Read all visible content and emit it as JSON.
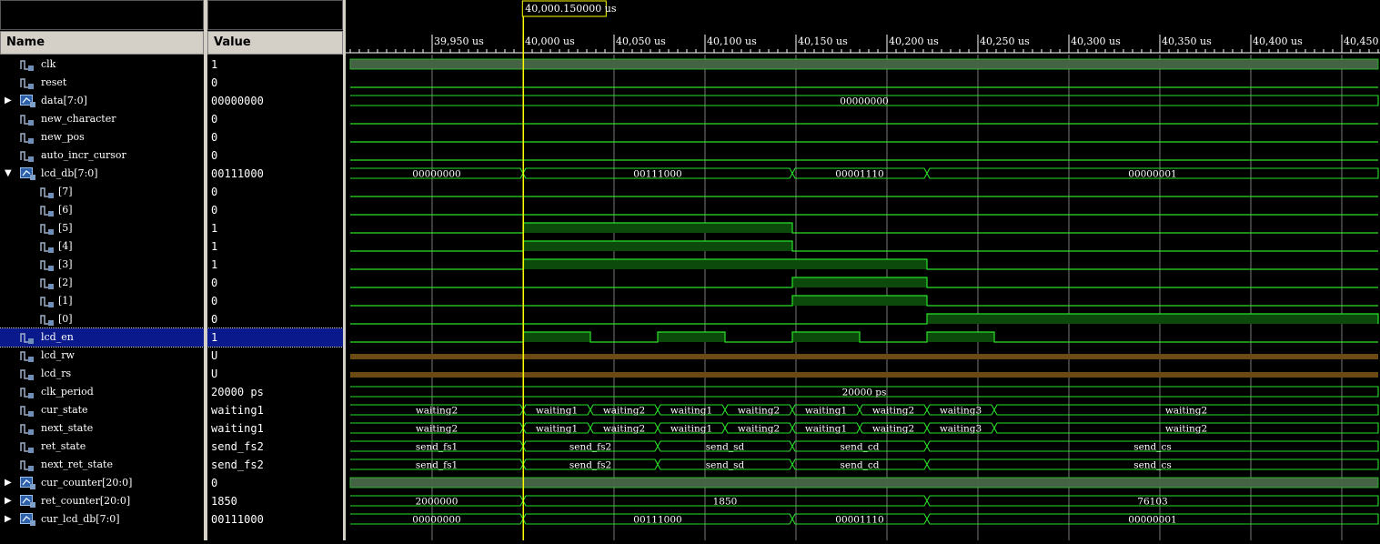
{
  "headers": {
    "name": "Name",
    "value": "Value"
  },
  "cursor_label": "40,000.150000 us",
  "timeline_ticks": [
    "39,950 us",
    "40,000 us",
    "40,050 us",
    "40,100 us",
    "40,150 us",
    "40,200 us",
    "40,250 us",
    "40,300 us",
    "40,350 us",
    "40,400 us",
    "40,450 us"
  ],
  "signals": [
    {
      "name": "clk",
      "value": "1",
      "kind": "bit",
      "expander": "",
      "indent": 0
    },
    {
      "name": "reset",
      "value": "0",
      "kind": "bit",
      "expander": "",
      "indent": 0
    },
    {
      "name": "data[7:0]",
      "value": "00000000",
      "kind": "bus",
      "expander": "▶",
      "indent": 0
    },
    {
      "name": "new_character",
      "value": "0",
      "kind": "bit",
      "expander": "",
      "indent": 0
    },
    {
      "name": "new_pos",
      "value": "0",
      "kind": "bit",
      "expander": "",
      "indent": 0
    },
    {
      "name": "auto_incr_cursor",
      "value": "0",
      "kind": "bit",
      "expander": "",
      "indent": 0
    },
    {
      "name": "lcd_db[7:0]",
      "value": "00111000",
      "kind": "bus",
      "expander": "▼",
      "indent": 0
    },
    {
      "name": "[7]",
      "value": "0",
      "kind": "bit",
      "expander": "",
      "indent": 1
    },
    {
      "name": "[6]",
      "value": "0",
      "kind": "bit",
      "expander": "",
      "indent": 1
    },
    {
      "name": "[5]",
      "value": "1",
      "kind": "bit",
      "expander": "",
      "indent": 1
    },
    {
      "name": "[4]",
      "value": "1",
      "kind": "bit",
      "expander": "",
      "indent": 1
    },
    {
      "name": "[3]",
      "value": "1",
      "kind": "bit",
      "expander": "",
      "indent": 1
    },
    {
      "name": "[2]",
      "value": "0",
      "kind": "bit",
      "expander": "",
      "indent": 1
    },
    {
      "name": "[1]",
      "value": "0",
      "kind": "bit",
      "expander": "",
      "indent": 1
    },
    {
      "name": "[0]",
      "value": "0",
      "kind": "bit",
      "expander": "",
      "indent": 1
    },
    {
      "name": "lcd_en",
      "value": "1",
      "kind": "bit",
      "expander": "",
      "indent": 0,
      "selected": true
    },
    {
      "name": "lcd_rw",
      "value": "U",
      "kind": "bit",
      "expander": "",
      "indent": 0
    },
    {
      "name": "lcd_rs",
      "value": "U",
      "kind": "bit",
      "expander": "",
      "indent": 0
    },
    {
      "name": "clk_period",
      "value": "20000 ps",
      "kind": "bit",
      "expander": "",
      "indent": 0
    },
    {
      "name": "cur_state",
      "value": "waiting1",
      "kind": "bit",
      "expander": "",
      "indent": 0
    },
    {
      "name": "next_state",
      "value": "waiting1",
      "kind": "bit",
      "expander": "",
      "indent": 0
    },
    {
      "name": "ret_state",
      "value": "send_fs2",
      "kind": "bit",
      "expander": "",
      "indent": 0
    },
    {
      "name": "next_ret_state",
      "value": "send_fs2",
      "kind": "bit",
      "expander": "",
      "indent": 0
    },
    {
      "name": "cur_counter[20:0]",
      "value": "0",
      "kind": "bus",
      "expander": "▶",
      "indent": 0
    },
    {
      "name": "ret_counter[20:0]",
      "value": "1850",
      "kind": "bus",
      "expander": "▶",
      "indent": 0
    },
    {
      "name": "cur_lcd_db[7:0]",
      "value": "00111000",
      "kind": "bus",
      "expander": "▶",
      "indent": 0
    }
  ],
  "waveforms": [
    {
      "type": "clock"
    },
    {
      "type": "low"
    },
    {
      "type": "bus",
      "segments": [
        [
          "00000000"
        ]
      ]
    },
    {
      "type": "low"
    },
    {
      "type": "low"
    },
    {
      "type": "low"
    },
    {
      "type": "bus",
      "segments": [
        [
          "00000000"
        ],
        [
          "00111000"
        ],
        [
          "00001110"
        ],
        [
          "00000001"
        ]
      ]
    },
    {
      "type": "low"
    },
    {
      "type": "low"
    },
    {
      "type": "pulses",
      "highs": [
        [
          40000,
          40148
        ]
      ]
    },
    {
      "type": "pulses",
      "highs": [
        [
          40000,
          40148
        ]
      ]
    },
    {
      "type": "pulses",
      "highs": [
        [
          40000,
          40222
        ]
      ]
    },
    {
      "type": "pulses",
      "highs": [
        [
          40148,
          40222
        ]
      ]
    },
    {
      "type": "pulses",
      "highs": [
        [
          40148,
          40222
        ]
      ]
    },
    {
      "type": "pulses",
      "highs": [
        [
          40222,
          40470
        ]
      ]
    },
    {
      "type": "pulses",
      "highs": [
        [
          40000,
          40037
        ],
        [
          40074,
          40111
        ],
        [
          40148,
          40185
        ],
        [
          40222,
          40259
        ]
      ]
    },
    {
      "type": "undefined"
    },
    {
      "type": "undefined"
    },
    {
      "type": "bus",
      "segments": [
        [
          "20000 ps"
        ]
      ]
    },
    {
      "type": "bus",
      "segments": [
        [
          "waiting2"
        ],
        [
          "waiting1"
        ],
        [
          "waiting2"
        ],
        [
          "waiting1"
        ],
        [
          "waiting2"
        ],
        [
          "waiting1"
        ],
        [
          "waiting2"
        ],
        [
          "waiting3"
        ],
        [
          "waiting2"
        ]
      ]
    },
    {
      "type": "bus",
      "segments": [
        [
          "waiting2"
        ],
        [
          "waiting1"
        ],
        [
          "waiting2"
        ],
        [
          "waiting1"
        ],
        [
          "waiting2"
        ],
        [
          "waiting1"
        ],
        [
          "waiting2"
        ],
        [
          "waiting3"
        ],
        [
          "waiting2"
        ]
      ]
    },
    {
      "type": "bus",
      "segments": [
        [
          "send_fs1"
        ],
        [
          "send_fs2"
        ],
        [
          "send_sd"
        ],
        [
          "send_cd"
        ],
        [
          "send_cs"
        ]
      ]
    },
    {
      "type": "bus",
      "segments": [
        [
          "send_fs1"
        ],
        [
          "send_fs2"
        ],
        [
          "send_sd"
        ],
        [
          "send_cd"
        ],
        [
          "send_cs"
        ]
      ]
    },
    {
      "type": "clock"
    },
    {
      "type": "bus",
      "segments": [
        [
          "2000000"
        ],
        [
          "1850"
        ],
        [
          "76103"
        ]
      ]
    },
    {
      "type": "bus",
      "segments": [
        [
          "00000000"
        ],
        [
          "00111000"
        ],
        [
          "00001110"
        ],
        [
          "00000001"
        ]
      ]
    }
  ],
  "segment_times": {
    "2": [
      [
        39905,
        40470
      ]
    ],
    "6": [
      [
        39905,
        40000
      ],
      [
        40000,
        40148
      ],
      [
        40148,
        40222
      ],
      [
        40222,
        40470
      ]
    ],
    "18": [
      [
        39905,
        40470
      ]
    ],
    "19": [
      [
        39905,
        40000
      ],
      [
        40000,
        40037
      ],
      [
        40037,
        40074
      ],
      [
        40074,
        40111
      ],
      [
        40111,
        40148
      ],
      [
        40148,
        40185
      ],
      [
        40185,
        40222
      ],
      [
        40222,
        40259
      ],
      [
        40259,
        40470
      ]
    ],
    "20": [
      [
        39905,
        40000
      ],
      [
        40000,
        40037
      ],
      [
        40037,
        40074
      ],
      [
        40074,
        40111
      ],
      [
        40111,
        40148
      ],
      [
        40148,
        40185
      ],
      [
        40185,
        40222
      ],
      [
        40222,
        40259
      ],
      [
        40259,
        40470
      ]
    ],
    "21": [
      [
        39905,
        40000
      ],
      [
        40000,
        40074
      ],
      [
        40074,
        40148
      ],
      [
        40148,
        40222
      ],
      [
        40222,
        40470
      ]
    ],
    "22": [
      [
        39905,
        40000
      ],
      [
        40000,
        40074
      ],
      [
        40074,
        40148
      ],
      [
        40148,
        40222
      ],
      [
        40222,
        40470
      ]
    ],
    "24": [
      [
        39905,
        40000
      ],
      [
        40000,
        40222
      ],
      [
        40222,
        40470
      ]
    ],
    "25": [
      [
        39905,
        40000
      ],
      [
        40000,
        40148
      ],
      [
        40148,
        40222
      ],
      [
        40222,
        40470
      ]
    ]
  },
  "cursor_time": 40000.15,
  "colors": {
    "wave": "#29e029",
    "fill": "#0b4a0b",
    "grid": "#ffffff",
    "cursor": "#ffff00",
    "undef": "#6b4a14"
  }
}
